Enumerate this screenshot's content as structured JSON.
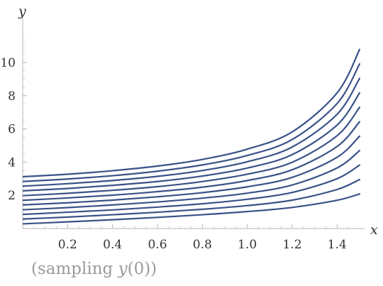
{
  "chart_data": {
    "type": "line",
    "title": "",
    "xlabel": "x",
    "ylabel": "y",
    "xlim": [
      0,
      1.5
    ],
    "ylim": [
      0,
      12
    ],
    "grid": false,
    "x_ticks": [
      "0.2",
      "0.4",
      "0.6",
      "0.8",
      "1.0",
      "1.2",
      "1.4"
    ],
    "y_ticks": [
      "2",
      "4",
      "6",
      "8",
      "10"
    ],
    "line_color": "#3a5288",
    "caption": {
      "prefix": "(sampling ",
      "italic": "y",
      "suffix": "(0))"
    },
    "series": [
      {
        "x": [
          0,
          0.2,
          0.4,
          0.6,
          0.8,
          1.0,
          1.2,
          1.4,
          1.5
        ],
        "y": [
          0.28,
          0.4,
          0.53,
          0.67,
          0.83,
          1.02,
          1.27,
          1.7,
          2.08
        ]
      },
      {
        "x": [
          0,
          0.2,
          0.4,
          0.6,
          0.8,
          1.0,
          1.2,
          1.4,
          1.5
        ],
        "y": [
          0.57,
          0.69,
          0.83,
          0.98,
          1.16,
          1.38,
          1.71,
          2.35,
          2.95
        ]
      },
      {
        "x": [
          0,
          0.2,
          0.4,
          0.6,
          0.8,
          1.0,
          1.2,
          1.4,
          1.5
        ],
        "y": [
          0.85,
          0.98,
          1.12,
          1.29,
          1.49,
          1.76,
          2.17,
          3.0,
          3.82
        ]
      },
      {
        "x": [
          0,
          0.2,
          0.4,
          0.6,
          0.8,
          1.0,
          1.2,
          1.4,
          1.5
        ],
        "y": [
          1.13,
          1.26,
          1.42,
          1.6,
          1.83,
          2.13,
          2.62,
          3.65,
          4.69
        ]
      },
      {
        "x": [
          0,
          0.2,
          0.4,
          0.6,
          0.8,
          1.0,
          1.2,
          1.4,
          1.5
        ],
        "y": [
          1.42,
          1.55,
          1.71,
          1.91,
          2.16,
          2.51,
          3.08,
          4.29,
          5.56
        ]
      },
      {
        "x": [
          0,
          0.2,
          0.4,
          0.6,
          0.8,
          1.0,
          1.2,
          1.4,
          1.5
        ],
        "y": [
          1.7,
          1.84,
          2.01,
          2.22,
          2.49,
          2.89,
          3.54,
          4.94,
          6.43
        ]
      },
      {
        "x": [
          0,
          0.2,
          0.4,
          0.6,
          0.8,
          1.0,
          1.2,
          1.4,
          1.5
        ],
        "y": [
          1.98,
          2.12,
          2.3,
          2.52,
          2.83,
          3.27,
          3.99,
          5.59,
          7.3
        ]
      },
      {
        "x": [
          0,
          0.2,
          0.4,
          0.6,
          0.8,
          1.0,
          1.2,
          1.4,
          1.5
        ],
        "y": [
          2.27,
          2.41,
          2.6,
          2.83,
          3.16,
          3.64,
          4.45,
          6.23,
          8.17
        ]
      },
      {
        "x": [
          0,
          0.2,
          0.4,
          0.6,
          0.8,
          1.0,
          1.2,
          1.4,
          1.5
        ],
        "y": [
          2.55,
          2.7,
          2.89,
          3.14,
          3.49,
          4.02,
          4.91,
          6.88,
          9.04
        ]
      },
      {
        "x": [
          0,
          0.2,
          0.4,
          0.6,
          0.8,
          1.0,
          1.2,
          1.4,
          1.5
        ],
        "y": [
          2.83,
          2.98,
          3.18,
          3.45,
          3.83,
          4.4,
          5.36,
          7.53,
          9.91
        ]
      },
      {
        "x": [
          0,
          0.2,
          0.4,
          0.6,
          0.8,
          1.0,
          1.2,
          1.4,
          1.5
        ],
        "y": [
          3.12,
          3.27,
          3.48,
          3.76,
          4.16,
          4.78,
          5.82,
          8.17,
          10.78
        ]
      }
    ]
  }
}
